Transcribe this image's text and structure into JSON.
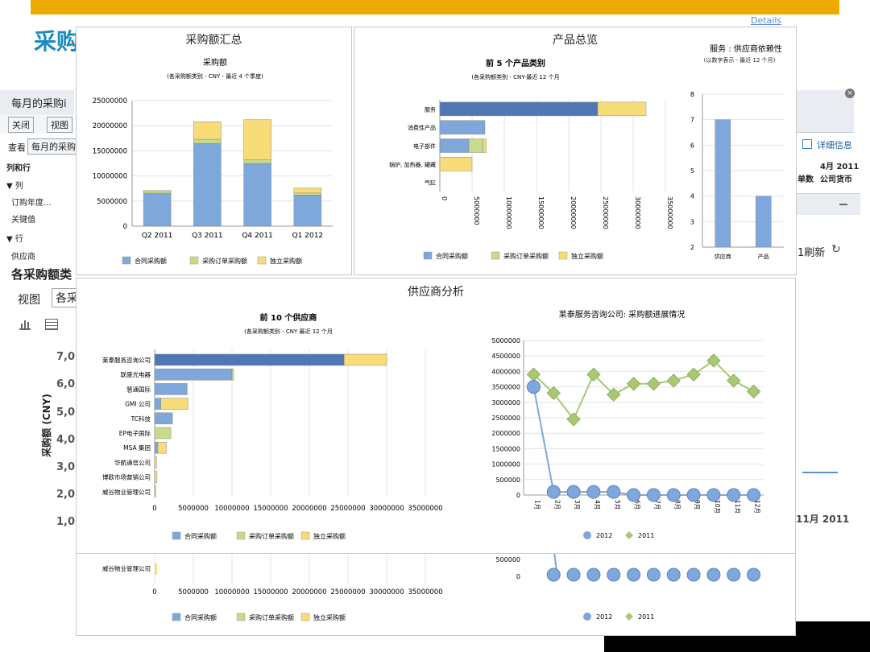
{
  "background": {
    "title": "采购",
    "monthly_label": "每月的采购i",
    "close_btn": "关闭",
    "view_btn": "视图",
    "view_label": "查看",
    "view_value": "每月的采购",
    "rows_cols": "列和行",
    "col_label": "▼ 列",
    "col_item1": "订购年度...",
    "col_item2": "关键值",
    "row_label": "▼ 行",
    "row_item1": "供应商",
    "section_title": "各采购额类",
    "view2": "视图",
    "view2_value": "各采",
    "detail_info": "详细信息",
    "month_value": "4月 2011",
    "unit_label": "单数",
    "currency_label": "公司货币",
    "refresh": "1刷新",
    "month_nov": "11月 2011",
    "yaxis_title": "采购额 (CNY)",
    "yticks": [
      "7,0",
      "6,0",
      "5,0",
      "4,0",
      "3,0",
      "2,0",
      "1,0"
    ]
  },
  "details_link": "Details",
  "panels": {
    "purchase_summary": {
      "title": "采购额汇总",
      "chart_title": "采购额",
      "chart_subtitle": "(各采购额类别 - CNY - 最近 4 个季度)"
    },
    "product_overview": {
      "title": "产品总览",
      "chart_title": "前 5 个产品类别",
      "chart_subtitle": "(各采购额类别 - CNY-最近 12 个月",
      "side_title": "服务 : 供应商依赖性",
      "side_subtitle": "(以数字表示 - 最近 12 个月)"
    },
    "supplier_analysis": {
      "title": "供应商分析",
      "chart_title": "前 10 个供应商",
      "chart_subtitle": "(各采购额类别 - CNY 最近 12 个月",
      "line_title": "莱泰服务咨询公司: 采购额进展情况"
    }
  },
  "colors": {
    "contract": "#7ea7dc",
    "po": "#c6dc8c",
    "free": "#f7dc78",
    "dark": "#4f77b3",
    "line2011": "#a8c872",
    "line2012": "#7ea7dc"
  },
  "legend": {
    "contract": "合同采购额",
    "po": "采购订单采购额",
    "free": "独立采购额"
  },
  "chart_data": [
    {
      "type": "bar",
      "stacked": true,
      "title": "采购额",
      "categories": [
        "Q2 2011",
        "Q3 2011",
        "Q4 2011",
        "Q1 2012"
      ],
      "series": [
        {
          "name": "合同采购额",
          "values": [
            6500000,
            16500000,
            12500000,
            6200000
          ]
        },
        {
          "name": "采购订单采购额",
          "values": [
            300000,
            800000,
            700000,
            400000
          ]
        },
        {
          "name": "独立采购额",
          "values": [
            300000,
            3500000,
            8000000,
            1000000
          ]
        }
      ],
      "ylim": [
        0,
        25000000
      ],
      "yticks": [
        "0",
        "5000000",
        "10000000",
        "15000000",
        "20000000",
        "25000000"
      ]
    },
    {
      "type": "bar",
      "orientation": "horizontal",
      "stacked": true,
      "title": "前 5 个产品类别",
      "categories": [
        "服务",
        "消费性产品",
        "电子部件",
        "锅炉, 加热器, 罐藏",
        "气缸"
      ],
      "series": [
        {
          "name": "合同采购额",
          "values": [
            24500000,
            7000000,
            4500000,
            0,
            0
          ]
        },
        {
          "name": "采购订单采购额",
          "values": [
            0,
            0,
            2200000,
            0,
            0
          ]
        },
        {
          "name": "独立采购额",
          "values": [
            7500000,
            0,
            500000,
            5000000,
            0
          ]
        }
      ],
      "xlim": [
        0,
        35000000
      ],
      "xticks": [
        "0",
        "5000000",
        "10000000",
        "15000000",
        "20000000",
        "25000000",
        "30000000",
        "35000000"
      ]
    },
    {
      "type": "bar",
      "title": "服务 : 供应商依赖性",
      "categories": [
        "供应商",
        "产品"
      ],
      "values": [
        7,
        4
      ],
      "ylim": [
        2,
        8
      ],
      "yticks": [
        "2",
        "3",
        "4",
        "5",
        "6",
        "7",
        "8"
      ]
    },
    {
      "type": "bar",
      "orientation": "horizontal",
      "stacked": true,
      "title": "前 10 个供应商",
      "categories": [
        "莱泰服务咨询公司",
        "联盛光电器",
        "慧通国际",
        "GMI 公司",
        "TC科技",
        "EP电子国际",
        "MSA 集团",
        "华航通信公司",
        "博欧市场营销公司",
        "威谷物业管理公司"
      ],
      "series": [
        {
          "name": "合同采购额",
          "values": [
            24500000,
            10000000,
            4200000,
            800000,
            2300000,
            0,
            400000,
            0,
            0,
            0
          ]
        },
        {
          "name": "采购订单采购额",
          "values": [
            0,
            200000,
            0,
            0,
            0,
            2100000,
            0,
            0,
            0,
            0
          ]
        },
        {
          "name": "独立采购额",
          "values": [
            5500000,
            0,
            0,
            3500000,
            0,
            0,
            1100000,
            250000,
            300000,
            150000
          ]
        }
      ],
      "xlim": [
        0,
        35000000
      ],
      "xticks": [
        "0",
        "5000000",
        "10000000",
        "15000000",
        "20000000",
        "25000000",
        "30000000",
        "35000000"
      ]
    },
    {
      "type": "line",
      "title": "莱泰服务咨询公司: 采购额进展情况",
      "x": [
        "1月",
        "2月",
        "3月",
        "4月",
        "5月",
        "6月",
        "7月",
        "8月",
        "9月",
        "10月",
        "11月",
        "12月"
      ],
      "series": [
        {
          "name": "2012",
          "values": [
            3500000,
            100000,
            100000,
            100000,
            100000,
            0,
            0,
            0,
            0,
            0,
            0,
            0
          ]
        },
        {
          "name": "2011",
          "values": [
            3900000,
            3300000,
            2450000,
            3900000,
            3250000,
            3600000,
            3600000,
            3700000,
            3900000,
            4350000,
            3700000,
            3350000
          ]
        }
      ],
      "ylim": [
        0,
        5000000
      ],
      "yticks": [
        "0",
        "500000",
        "1000000",
        "1500000",
        "2000000",
        "2500000",
        "3000000",
        "3500000",
        "4000000",
        "4500000",
        "5000000"
      ]
    }
  ],
  "ghost": {
    "row_label": "威谷物业管理公司",
    "xticks": [
      "0",
      "5000000",
      "10000000",
      "15000000",
      "20000000",
      "25000000",
      "30000000",
      "35000000"
    ],
    "yticks": [
      "500000",
      "0"
    ]
  }
}
